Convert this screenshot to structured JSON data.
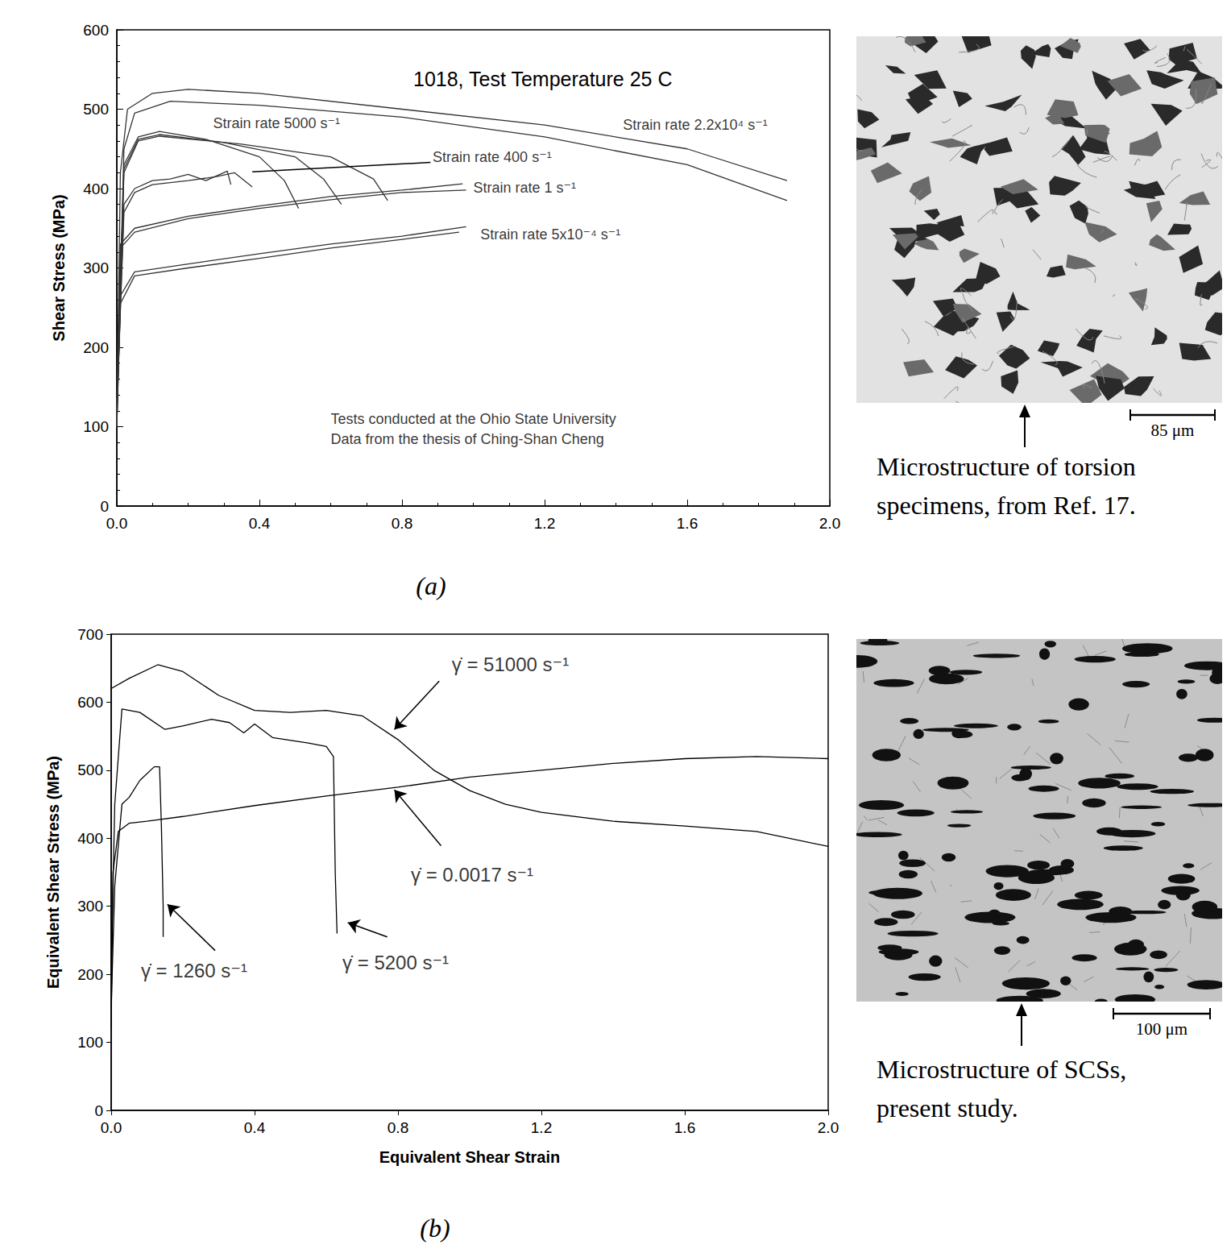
{
  "chart_data": [
    {
      "type": "line",
      "panel_label": "(a)",
      "title": "1018, Test Temperature 25 C",
      "ylabel": "Shear Stress (MPa)",
      "xlim": [
        0,
        2
      ],
      "ylim": [
        0,
        600
      ],
      "xticks": [
        {
          "value": 0,
          "label": "0.0"
        },
        {
          "value": 0.4,
          "label": "0.4"
        },
        {
          "value": 0.8,
          "label": "0.8"
        },
        {
          "value": 1.2,
          "label": "1.2"
        },
        {
          "value": 1.6,
          "label": "1.6"
        },
        {
          "value": 2,
          "label": "2.0"
        }
      ],
      "yticks": [
        0,
        100,
        200,
        300,
        400,
        500,
        600
      ],
      "grid": false,
      "series": [
        {
          "color": "#333333",
          "x": [
            0,
            0.01,
            0.03,
            0.1,
            0.2,
            0.4,
            0.8,
            1.2,
            1.6,
            1.88
          ],
          "values": [
            110,
            420,
            500,
            520,
            525,
            520,
            500,
            480,
            450,
            410
          ]
        },
        {
          "color": "#333333",
          "x": [
            0,
            0.02,
            0.05,
            0.15,
            0.4,
            0.8,
            1.2,
            1.6,
            1.88
          ],
          "values": [
            110,
            450,
            495,
            510,
            505,
            490,
            465,
            430,
            385
          ]
        },
        {
          "color": "#333333",
          "x": [
            0,
            0.02,
            0.06,
            0.12,
            0.25,
            0.4,
            0.47,
            0.51
          ],
          "values": [
            120,
            430,
            465,
            472,
            462,
            440,
            410,
            375
          ]
        },
        {
          "color": "#333333",
          "x": [
            0,
            0.02,
            0.06,
            0.12,
            0.3,
            0.5,
            0.58,
            0.63
          ],
          "values": [
            120,
            425,
            462,
            468,
            458,
            440,
            412,
            380
          ]
        },
        {
          "color": "#333333",
          "x": [
            0,
            0.02,
            0.06,
            0.12,
            0.35,
            0.6,
            0.72,
            0.76
          ],
          "values": [
            120,
            420,
            460,
            466,
            456,
            440,
            412,
            385
          ]
        },
        {
          "color": "#333333",
          "x": [
            0,
            0.02,
            0.05,
            0.1,
            0.15,
            0.2,
            0.25,
            0.31,
            0.32
          ],
          "values": [
            120,
            380,
            400,
            410,
            412,
            418,
            410,
            422,
            405
          ]
        },
        {
          "color": "#333333",
          "x": [
            0,
            0.02,
            0.05,
            0.1,
            0.2,
            0.28,
            0.33,
            0.38
          ],
          "values": [
            120,
            370,
            395,
            405,
            410,
            415,
            420,
            402
          ]
        },
        {
          "color": "#333333",
          "x": [
            0,
            0.01,
            0.05,
            0.2,
            0.4,
            0.6,
            0.8,
            0.97
          ],
          "values": [
            100,
            330,
            350,
            365,
            378,
            390,
            398,
            406
          ]
        },
        {
          "color": "#333333",
          "x": [
            0,
            0.01,
            0.05,
            0.2,
            0.4,
            0.6,
            0.8,
            0.98
          ],
          "values": [
            100,
            325,
            345,
            362,
            375,
            386,
            395,
            398
          ]
        },
        {
          "color": "#333333",
          "x": [
            0,
            0.01,
            0.05,
            0.2,
            0.4,
            0.6,
            0.8,
            0.98
          ],
          "values": [
            100,
            265,
            295,
            305,
            318,
            330,
            340,
            352
          ]
        },
        {
          "color": "#333333",
          "x": [
            0,
            0.01,
            0.05,
            0.2,
            0.4,
            0.6,
            0.8,
            0.96
          ],
          "values": [
            100,
            255,
            290,
            300,
            312,
            325,
            336,
            345
          ]
        }
      ],
      "annotations": [
        {
          "text": "Strain rate 5000 s⁻¹",
          "x": 0.27,
          "y": 482
        },
        {
          "text": "Strain rate 400 s⁻¹",
          "x": 0.886,
          "y": 440,
          "line": {
            "from": [
              0.88,
              433
            ],
            "to": [
              0.38,
              421
            ]
          }
        },
        {
          "text": "Strain rate 1 s⁻¹",
          "x": 1.0,
          "y": 401
        },
        {
          "text": "Strain rate 5x10⁻⁴ s⁻¹",
          "x": 1.02,
          "y": 342
        },
        {
          "text": "Strain rate 2.2x10⁴ s⁻¹",
          "x": 1.42,
          "y": 480
        },
        {
          "text": "Tests conducted at the Ohio State University",
          "x": 0.6,
          "y": 110
        },
        {
          "text": "Data from the thesis of Ching-Shan Cheng",
          "x": 0.6,
          "y": 84
        }
      ],
      "micrograph": {
        "caption": [
          "Microstructure of torsion",
          "specimens, from Ref. 17."
        ],
        "scale_bar": "85 μm"
      }
    },
    {
      "type": "line",
      "panel_label": "(b)",
      "xlabel": "Equivalent Shear Strain",
      "ylabel": "Equivalent Shear Stress (MPa)",
      "xlim": [
        0,
        2
      ],
      "ylim": [
        0,
        700
      ],
      "xticks": [
        {
          "value": 0,
          "label": "0.0"
        },
        {
          "value": 0.4,
          "label": "0.4"
        },
        {
          "value": 0.8,
          "label": "0.8"
        },
        {
          "value": 1.2,
          "label": "1.2"
        },
        {
          "value": 1.6,
          "label": "1.6"
        },
        {
          "value": 2,
          "label": "2.0"
        }
      ],
      "yticks": [
        0,
        100,
        200,
        300,
        400,
        500,
        600,
        700
      ],
      "grid": false,
      "series": [
        {
          "color": "#000000",
          "x": [
            0,
            0.05,
            0.13,
            0.2,
            0.3,
            0.4,
            0.5,
            0.6,
            0.7,
            0.8,
            0.9,
            1.0,
            1.1,
            1.2,
            1.4,
            1.6,
            1.8,
            2.0
          ],
          "values": [
            620,
            635,
            655,
            645,
            610,
            588,
            585,
            588,
            580,
            545,
            500,
            470,
            450,
            438,
            425,
            418,
            410,
            388
          ]
        },
        {
          "color": "#000000",
          "x": [
            0,
            0.01,
            0.03,
            0.08,
            0.15,
            0.2,
            0.28,
            0.33,
            0.37,
            0.4,
            0.45,
            0.55,
            0.6,
            0.62,
            0.625,
            0.63
          ],
          "values": [
            200,
            450,
            590,
            585,
            560,
            565,
            575,
            570,
            555,
            568,
            548,
            540,
            535,
            520,
            350,
            260
          ]
        },
        {
          "color": "#000000",
          "x": [
            0,
            0.01,
            0.03,
            0.05,
            0.08,
            0.12,
            0.135,
            0.14,
            0.145,
            0.145
          ],
          "values": [
            150,
            330,
            450,
            460,
            485,
            505,
            505,
            420,
            300,
            255
          ]
        },
        {
          "color": "#000000",
          "x": [
            0,
            0.005,
            0.02,
            0.05,
            0.1,
            0.2,
            0.4,
            0.6,
            0.8,
            1.0,
            1.2,
            1.4,
            1.6,
            1.8,
            2.0
          ],
          "values": [
            120,
            350,
            410,
            422,
            425,
            432,
            448,
            462,
            475,
            490,
            500,
            510,
            517,
            520,
            517
          ]
        }
      ],
      "annotations": [
        {
          "text": "γ̇ = 51000 s⁻¹",
          "x": 0.95,
          "y": 655,
          "arrow": {
            "from": [
              0.915,
              631
            ],
            "to": [
              0.79,
              560
            ]
          }
        },
        {
          "text": "γ̇ = 0.0017 s⁻¹",
          "x": 0.836,
          "y": 347,
          "arrow": {
            "from": [
              0.92,
              389
            ],
            "to": [
              0.79,
              471
            ]
          }
        },
        {
          "text": "γ̇ = 1260 s⁻¹",
          "x": 0.083,
          "y": 205,
          "arrow": {
            "from": [
              0.29,
              235
            ],
            "to": [
              0.157,
              303
            ]
          }
        },
        {
          "text": "γ̇ = 5200 s⁻¹",
          "x": 0.645,
          "y": 217,
          "arrow": {
            "from": [
              0.77,
              255
            ],
            "to": [
              0.66,
              276
            ]
          }
        }
      ],
      "micrograph": {
        "caption": [
          "Microstructure of SCSs,",
          "present study."
        ],
        "scale_bar": "100 μm"
      }
    }
  ]
}
